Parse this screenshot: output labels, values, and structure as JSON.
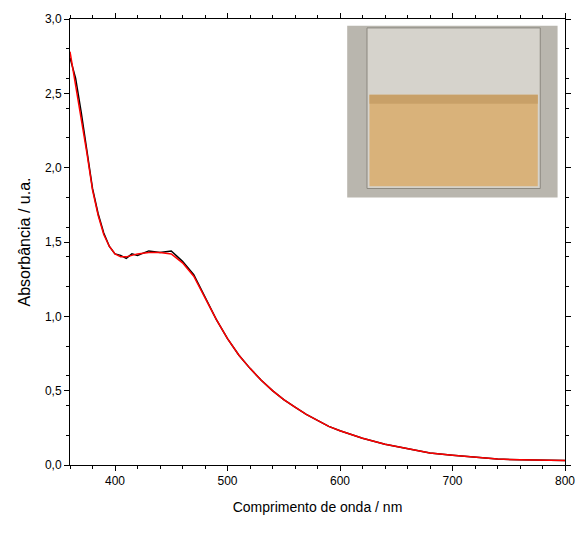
{
  "chart_data": {
    "type": "line",
    "x_label": "Comprimento de onda / nm",
    "y_label": "Absorbância / u.a.",
    "x": [
      360,
      365,
      370,
      375,
      380,
      385,
      390,
      395,
      400,
      405,
      410,
      415,
      420,
      430,
      440,
      450,
      460,
      470,
      480,
      490,
      500,
      510,
      520,
      530,
      540,
      550,
      560,
      570,
      580,
      590,
      600,
      620,
      640,
      660,
      680,
      700,
      720,
      740,
      760,
      780,
      800
    ],
    "series": [
      {
        "color": "#000000",
        "line_style": "solid",
        "values": [
          2.74,
          2.6,
          2.37,
          2.12,
          1.86,
          1.69,
          1.56,
          1.47,
          1.42,
          1.41,
          1.39,
          1.42,
          1.41,
          1.44,
          1.43,
          1.44,
          1.37,
          1.28,
          1.13,
          0.98,
          0.85,
          0.74,
          0.65,
          0.57,
          0.5,
          0.44,
          0.39,
          0.34,
          0.3,
          0.26,
          0.23,
          0.18,
          0.14,
          0.11,
          0.08,
          0.065,
          0.05,
          0.04,
          0.035,
          0.03,
          0.03
        ]
      },
      {
        "color": "#ff0000",
        "line_style": "solid",
        "values": [
          2.78,
          2.55,
          2.35,
          2.1,
          1.85,
          1.68,
          1.55,
          1.47,
          1.42,
          1.4,
          1.4,
          1.41,
          1.42,
          1.43,
          1.43,
          1.42,
          1.36,
          1.27,
          1.12,
          0.98,
          0.85,
          0.74,
          0.65,
          0.57,
          0.5,
          0.44,
          0.39,
          0.34,
          0.3,
          0.26,
          0.23,
          0.18,
          0.14,
          0.11,
          0.08,
          0.065,
          0.05,
          0.04,
          0.035,
          0.03,
          0.03
        ]
      }
    ],
    "xlim": [
      360,
      800
    ],
    "xticks": [
      400,
      500,
      600,
      700,
      800
    ],
    "ylim": [
      0,
      3
    ],
    "yticks": [
      {
        "value": 0,
        "label": "0,0"
      },
      {
        "value": 0.5,
        "label": "0,5"
      },
      {
        "value": 1,
        "label": "1,0"
      },
      {
        "value": 1.5,
        "label": "1,5"
      },
      {
        "value": 2,
        "label": "2,0"
      },
      {
        "value": 2.5,
        "label": "2,5"
      },
      {
        "value": 3,
        "label": "3,0"
      }
    ],
    "grid": false
  }
}
